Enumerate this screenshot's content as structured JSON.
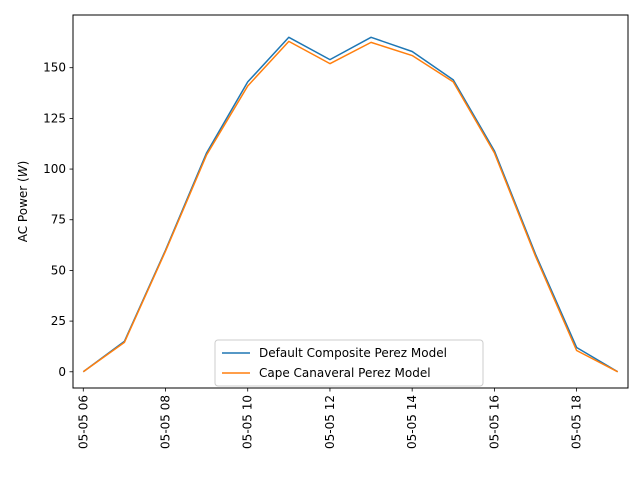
{
  "chart_data": {
    "type": "line",
    "title": "",
    "xlabel": "",
    "ylabel": "AC Power ($W$)",
    "ylabel_main": "AC Power (",
    "ylabel_unit": "W",
    "ylabel_close": ")",
    "x": [
      "05-05 06",
      "05-05 07",
      "05-05 08",
      "05-05 09",
      "05-05 10",
      "05-05 11",
      "05-05 12",
      "05-05 13",
      "05-05 14",
      "05-05 15",
      "05-05 16",
      "05-05 17",
      "05-05 18",
      "05-05 19"
    ],
    "x_ticks": [
      "05-05 06",
      "05-05 08",
      "05-05 10",
      "05-05 12",
      "05-05 14",
      "05-05 16",
      "05-05 18"
    ],
    "y_ticks": [
      0,
      25,
      50,
      75,
      100,
      125,
      150
    ],
    "ylim": [
      -8,
      176
    ],
    "xlim": [
      "05-05 05:45",
      "05-05 19:15"
    ],
    "grid": false,
    "legend_position": "lower-center",
    "series": [
      {
        "name": "Default Composite Perez Model",
        "color": "#1f77b4",
        "values": [
          0,
          15,
          60,
          108,
          143,
          165,
          154,
          165,
          158,
          144,
          109,
          58,
          12,
          0
        ]
      },
      {
        "name": "Cape Canaveral Perez Model",
        "color": "#ff7f0e",
        "values": [
          0,
          14.5,
          59.5,
          107,
          141,
          163,
          152,
          162.5,
          156,
          143,
          108,
          57,
          10.5,
          0
        ]
      }
    ]
  }
}
